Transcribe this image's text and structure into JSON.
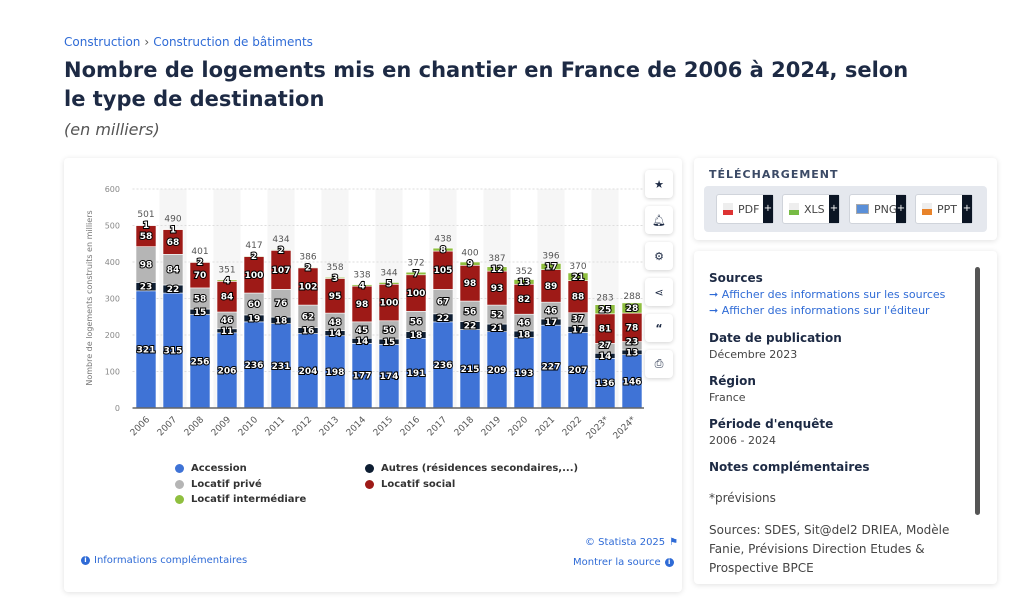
{
  "breadcrumb": [
    "Construction",
    "Construction de bâtiments"
  ],
  "title": "Nombre de logements mis en chantier en France de 2006 à 2024, selon le type de destination",
  "subtitle": "(en milliers)",
  "toolbar": [
    "star-icon",
    "bell-icon",
    "gear-icon",
    "share-icon",
    "quote-icon",
    "print-icon"
  ],
  "chart_data": {
    "type": "bar",
    "stacked": true,
    "ylabel": "Nombre de logements construits en milliers",
    "ylim": [
      0,
      600
    ],
    "yticks": [
      0,
      100,
      200,
      300,
      400,
      500,
      600
    ],
    "grid": true,
    "legend": "bottom",
    "categories": [
      "2006",
      "2007",
      "2008",
      "2009",
      "2010",
      "2011",
      "2012",
      "2013",
      "2014",
      "2015",
      "2016",
      "2017",
      "2018",
      "2019",
      "2020",
      "2021",
      "2022",
      "2023*",
      "2024*"
    ],
    "totals": [
      501,
      490,
      401,
      351,
      417,
      434,
      386,
      358,
      338,
      344,
      372,
      438,
      400,
      387,
      352,
      396,
      370,
      283,
      288
    ],
    "series": [
      {
        "name": "Accession",
        "color": "#3f73d6",
        "values": [
          321,
          315,
          256,
          206,
          236,
          231,
          204,
          198,
          177,
          174,
          191,
          236,
          215,
          209,
          193,
          227,
          207,
          136,
          146
        ]
      },
      {
        "name": "Autres (résidences secondaires,...)",
        "color": "#0e1e33",
        "values": [
          23,
          22,
          15,
          11,
          19,
          18,
          16,
          14,
          14,
          15,
          18,
          22,
          22,
          21,
          18,
          17,
          17,
          14,
          13
        ]
      },
      {
        "name": "Locatif privé",
        "color": "#b5b5b5",
        "values": [
          98,
          84,
          58,
          46,
          60,
          76,
          62,
          48,
          45,
          50,
          56,
          67,
          56,
          52,
          46,
          46,
          37,
          27,
          23
        ]
      },
      {
        "name": "Locatif social",
        "color": "#9e1a17",
        "values": [
          58,
          68,
          70,
          84,
          100,
          107,
          102,
          95,
          98,
          100,
          100,
          105,
          98,
          93,
          82,
          89,
          88,
          81,
          78
        ]
      },
      {
        "name": "Locatif intermédiare",
        "color": "#8fbf3f",
        "values": [
          1,
          1,
          2,
          4,
          2,
          2,
          2,
          3,
          4,
          5,
          7,
          8,
          9,
          12,
          13,
          17,
          21,
          25,
          28
        ]
      }
    ]
  },
  "footer": {
    "copyright": "© Statista 2025",
    "more_info": "Informations complémentaires",
    "show_source": "Montrer la source"
  },
  "download": {
    "title": "TÉLÉCHARGEMENT",
    "buttons": [
      "PDF",
      "XLS",
      "PNG",
      "PPT"
    ],
    "plus": "+"
  },
  "info": {
    "sources_title": "Sources",
    "source_links": [
      "Afficher des informations sur les sources",
      "Afficher des informations sur l'éditeur"
    ],
    "pub_title": "Date de publication",
    "pub_value": "Décembre 2023",
    "region_title": "Région",
    "region_value": "France",
    "period_title": "Période d'enquête",
    "period_value": "2006 - 2024",
    "notes_title": "Notes complémentaires",
    "notes": [
      "*prévisions",
      "Sources: SDES, Sit@del2 DRIEA, Modèle Fanie, Prévisions Direction Etudes & Prospective BPCE"
    ]
  }
}
